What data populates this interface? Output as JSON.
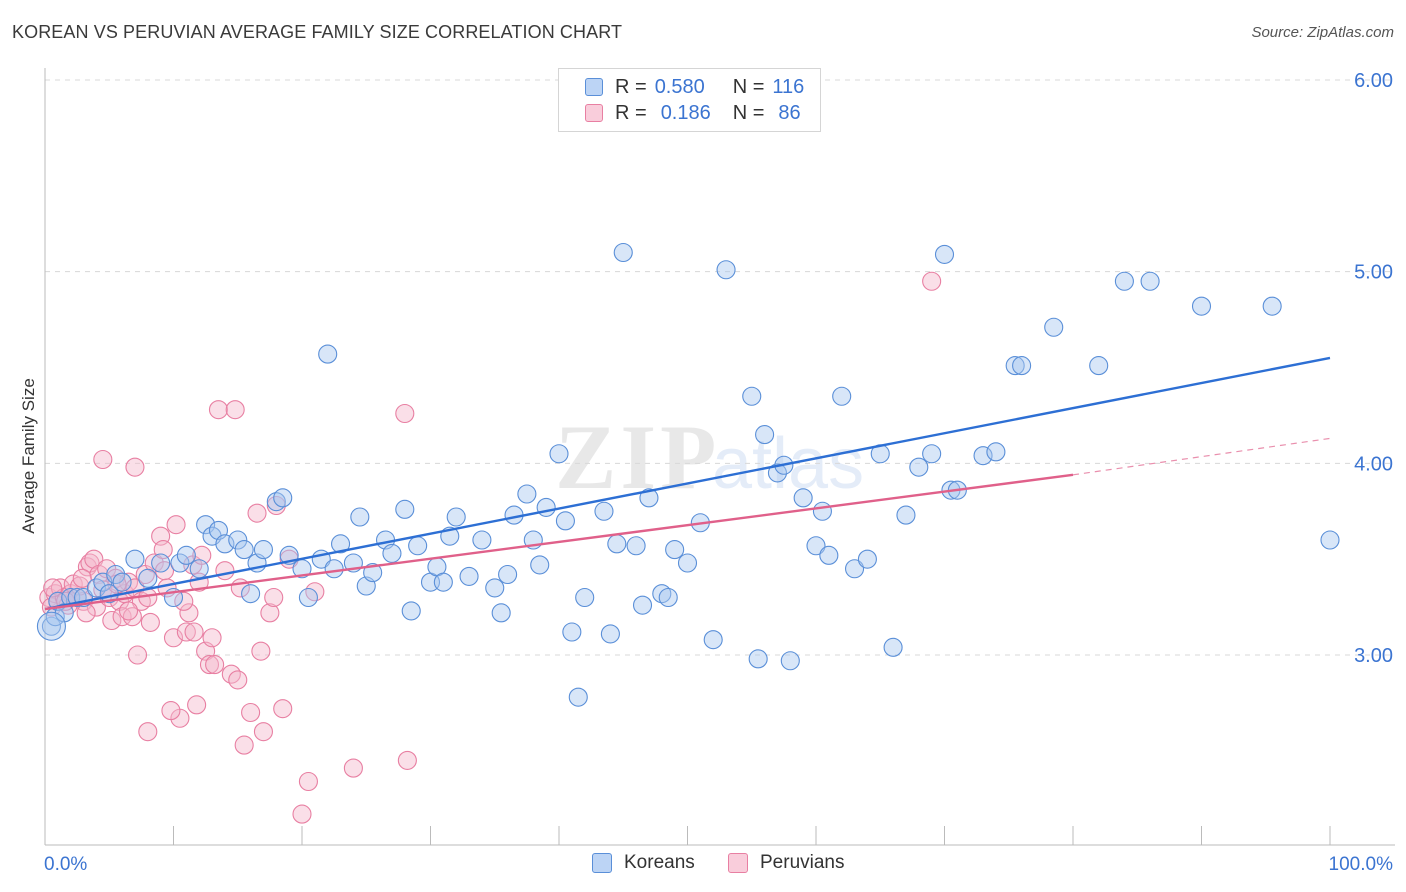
{
  "header": {
    "title": "KOREAN VS PERUVIAN AVERAGE FAMILY SIZE CORRELATION CHART",
    "source": "Source: ZipAtlas.com"
  },
  "legend": {
    "rows": [
      {
        "r_label": "R =",
        "r_value": "0.580",
        "n_label": "N =",
        "n_value": "116"
      },
      {
        "r_label": "R =",
        "r_value": "0.186",
        "n_label": "N =",
        "n_value": "86"
      }
    ]
  },
  "bottom_legend": {
    "items": [
      {
        "label": "Koreans"
      },
      {
        "label": "Peruvians"
      }
    ]
  },
  "colors": {
    "korean_fill": "#a8c8f0",
    "korean_stroke": "#5a8fd8",
    "korean_line": "#2d6fd4",
    "peruvian_fill": "#f5b8cc",
    "peruvian_stroke": "#e87fa2",
    "peruvian_line": "#e0608a",
    "axis_text": "#3b74d1",
    "grid": "#d8d8d8"
  },
  "chart_data": {
    "type": "scatter",
    "title": "KOREAN VS PERUVIAN AVERAGE FAMILY SIZE CORRELATION CHART",
    "xlabel": "",
    "ylabel": "Average Family Size",
    "xlim": [
      0,
      100
    ],
    "ylim": [
      2.0,
      6.15
    ],
    "x_tick_labels": [
      "0.0%",
      "100.0%"
    ],
    "y_ticks": [
      3.0,
      4.0,
      5.0,
      6.0
    ],
    "y_tick_labels": [
      "3.00",
      "4.00",
      "5.00",
      "6.00"
    ],
    "grid": true,
    "legend_position": "top-center",
    "series": [
      {
        "name": "Koreans",
        "r": 0.58,
        "n": 116,
        "trend": {
          "x0": 0.0,
          "y0": 3.24,
          "x1": 100.0,
          "y1": 4.55
        },
        "points": [
          [
            0.5,
            3.15
          ],
          [
            0.8,
            3.2
          ],
          [
            1.0,
            3.28
          ],
          [
            1.5,
            3.22
          ],
          [
            2.0,
            3.3
          ],
          [
            2.5,
            3.3
          ],
          [
            3.0,
            3.3
          ],
          [
            4.0,
            3.35
          ],
          [
            4.5,
            3.38
          ],
          [
            5.0,
            3.32
          ],
          [
            5.5,
            3.42
          ],
          [
            6.0,
            3.38
          ],
          [
            7.0,
            3.5
          ],
          [
            8.0,
            3.4
          ],
          [
            9.0,
            3.48
          ],
          [
            10.0,
            3.3
          ],
          [
            10.5,
            3.48
          ],
          [
            11.0,
            3.52
          ],
          [
            12.0,
            3.45
          ],
          [
            12.5,
            3.68
          ],
          [
            13.0,
            3.62
          ],
          [
            13.5,
            3.65
          ],
          [
            14.0,
            3.58
          ],
          [
            15.0,
            3.6
          ],
          [
            15.5,
            3.55
          ],
          [
            16.0,
            3.32
          ],
          [
            16.5,
            3.48
          ],
          [
            17.0,
            3.55
          ],
          [
            18.0,
            3.8
          ],
          [
            18.5,
            3.82
          ],
          [
            19.0,
            3.52
          ],
          [
            20.0,
            3.45
          ],
          [
            20.5,
            3.3
          ],
          [
            21.5,
            3.5
          ],
          [
            22.0,
            4.57
          ],
          [
            22.5,
            3.45
          ],
          [
            23.0,
            3.58
          ],
          [
            24.0,
            3.48
          ],
          [
            24.5,
            3.72
          ],
          [
            25.0,
            3.36
          ],
          [
            25.5,
            3.43
          ],
          [
            26.5,
            3.6
          ],
          [
            27.0,
            3.53
          ],
          [
            28.0,
            3.76
          ],
          [
            28.5,
            3.23
          ],
          [
            29.0,
            3.57
          ],
          [
            30.0,
            3.38
          ],
          [
            30.5,
            3.46
          ],
          [
            31.0,
            3.38
          ],
          [
            31.5,
            3.62
          ],
          [
            32.0,
            3.72
          ],
          [
            33.0,
            3.41
          ],
          [
            34.0,
            3.6
          ],
          [
            35.0,
            3.35
          ],
          [
            35.5,
            3.22
          ],
          [
            36.0,
            3.42
          ],
          [
            36.5,
            3.73
          ],
          [
            37.5,
            3.84
          ],
          [
            38.0,
            3.6
          ],
          [
            38.5,
            3.47
          ],
          [
            39.0,
            3.77
          ],
          [
            40.0,
            4.05
          ],
          [
            40.5,
            3.7
          ],
          [
            41.0,
            3.12
          ],
          [
            41.5,
            2.78
          ],
          [
            42.0,
            3.3
          ],
          [
            43.5,
            3.75
          ],
          [
            44.0,
            3.11
          ],
          [
            44.5,
            3.58
          ],
          [
            45.0,
            5.1
          ],
          [
            46.0,
            3.57
          ],
          [
            46.5,
            3.26
          ],
          [
            47.0,
            3.82
          ],
          [
            48.0,
            3.32
          ],
          [
            48.5,
            3.3
          ],
          [
            49.0,
            3.55
          ],
          [
            50.0,
            3.48
          ],
          [
            51.0,
            3.69
          ],
          [
            52.0,
            3.08
          ],
          [
            53.0,
            5.01
          ],
          [
            55.0,
            4.35
          ],
          [
            55.5,
            2.98
          ],
          [
            56.0,
            4.15
          ],
          [
            57.0,
            3.95
          ],
          [
            57.5,
            3.99
          ],
          [
            58.0,
            2.97
          ],
          [
            59.0,
            3.82
          ],
          [
            60.0,
            3.57
          ],
          [
            60.5,
            3.75
          ],
          [
            61.0,
            3.52
          ],
          [
            62.0,
            4.35
          ],
          [
            63.0,
            3.45
          ],
          [
            64.0,
            3.5
          ],
          [
            65.0,
            4.05
          ],
          [
            66.0,
            3.04
          ],
          [
            67.0,
            3.73
          ],
          [
            68.0,
            3.98
          ],
          [
            69.0,
            4.05
          ],
          [
            70.0,
            5.09
          ],
          [
            70.5,
            3.86
          ],
          [
            71.0,
            3.86
          ],
          [
            73.0,
            4.04
          ],
          [
            74.0,
            4.06
          ],
          [
            75.5,
            4.51
          ],
          [
            76.0,
            4.51
          ],
          [
            78.5,
            4.71
          ],
          [
            82.0,
            4.51
          ],
          [
            84.0,
            4.95
          ],
          [
            86.0,
            4.95
          ],
          [
            90.0,
            4.82
          ],
          [
            95.5,
            4.82
          ],
          [
            100.0,
            3.6
          ]
        ]
      },
      {
        "name": "Peruvians",
        "r": 0.186,
        "n": 86,
        "trend": {
          "x0": 0.0,
          "y0": 3.24,
          "x1": 80.0,
          "y1": 3.94
        },
        "trend_dashed": {
          "x0": 80.0,
          "y0": 3.94,
          "x1": 100.0,
          "y1": 4.13
        },
        "points": [
          [
            0.3,
            3.3
          ],
          [
            0.5,
            3.25
          ],
          [
            0.8,
            3.32
          ],
          [
            1.0,
            3.28
          ],
          [
            1.2,
            3.35
          ],
          [
            1.5,
            3.3
          ],
          [
            1.8,
            3.26
          ],
          [
            2.0,
            3.32
          ],
          [
            2.2,
            3.37
          ],
          [
            2.5,
            3.3
          ],
          [
            3.0,
            3.28
          ],
          [
            3.3,
            3.46
          ],
          [
            3.5,
            3.48
          ],
          [
            3.8,
            3.5
          ],
          [
            4.0,
            3.25
          ],
          [
            4.2,
            3.42
          ],
          [
            4.5,
            3.34
          ],
          [
            4.8,
            3.45
          ],
          [
            5.0,
            3.3
          ],
          [
            5.2,
            3.18
          ],
          [
            5.5,
            3.4
          ],
          [
            5.8,
            3.28
          ],
          [
            6.0,
            3.2
          ],
          [
            6.2,
            3.32
          ],
          [
            6.5,
            3.38
          ],
          [
            6.8,
            3.2
          ],
          [
            7.0,
            3.35
          ],
          [
            7.2,
            3.0
          ],
          [
            7.5,
            3.28
          ],
          [
            7.8,
            3.42
          ],
          [
            8.0,
            3.3
          ],
          [
            8.2,
            3.17
          ],
          [
            8.5,
            3.48
          ],
          [
            9.0,
            3.62
          ],
          [
            9.2,
            3.55
          ],
          [
            9.5,
            3.35
          ],
          [
            10.0,
            3.09
          ],
          [
            10.2,
            3.68
          ],
          [
            10.5,
            2.67
          ],
          [
            11.0,
            3.12
          ],
          [
            11.2,
            3.22
          ],
          [
            11.5,
            3.47
          ],
          [
            11.8,
            2.74
          ],
          [
            12.0,
            3.38
          ],
          [
            12.5,
            3.02
          ],
          [
            12.8,
            2.95
          ],
          [
            13.0,
            3.09
          ],
          [
            13.5,
            4.28
          ],
          [
            14.0,
            3.44
          ],
          [
            14.5,
            2.9
          ],
          [
            15.0,
            2.87
          ],
          [
            15.5,
            2.53
          ],
          [
            16.0,
            2.7
          ],
          [
            16.5,
            3.74
          ],
          [
            17.0,
            2.6
          ],
          [
            17.5,
            3.22
          ],
          [
            18.0,
            3.78
          ],
          [
            18.5,
            2.72
          ],
          [
            19.0,
            3.5
          ],
          [
            20.0,
            2.17
          ],
          [
            20.5,
            2.34
          ],
          [
            21.0,
            3.33
          ],
          [
            7.0,
            3.98
          ],
          [
            4.5,
            4.02
          ],
          [
            13.2,
            2.95
          ],
          [
            9.8,
            2.71
          ],
          [
            24.0,
            2.41
          ],
          [
            28.0,
            4.26
          ],
          [
            28.2,
            2.45
          ],
          [
            69.0,
            4.95
          ],
          [
            14.8,
            4.28
          ],
          [
            8.0,
            2.6
          ],
          [
            12.2,
            3.52
          ],
          [
            6.5,
            3.23
          ],
          [
            3.2,
            3.22
          ],
          [
            2.7,
            3.36
          ],
          [
            1.6,
            3.28
          ],
          [
            0.6,
            3.35
          ],
          [
            5.6,
            3.37
          ],
          [
            9.3,
            3.44
          ],
          [
            15.2,
            3.35
          ],
          [
            11.6,
            3.12
          ],
          [
            16.8,
            3.02
          ],
          [
            17.8,
            3.3
          ],
          [
            10.8,
            3.28
          ],
          [
            2.9,
            3.4
          ]
        ]
      }
    ]
  }
}
